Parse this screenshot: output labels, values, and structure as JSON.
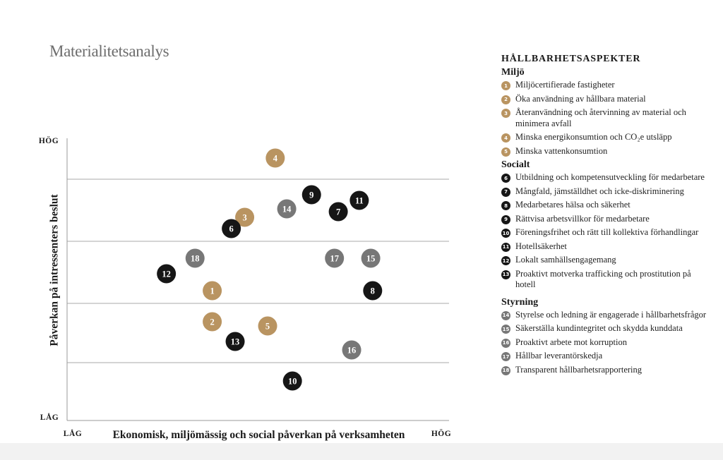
{
  "page": {
    "title": "Materialitetsanalys"
  },
  "colors": {
    "Miljö": "#b99461",
    "Socialt": "#161616",
    "Styrning": "#777777"
  },
  "legend": {
    "heading": "HÅLLBARHETSASPEKTER",
    "groups": [
      {
        "title": "Miljö",
        "items": [
          {
            "num": "1",
            "text": "Miljöcertifierade fastigheter"
          },
          {
            "num": "2",
            "text": "Öka användning av hållbara material"
          },
          {
            "num": "3",
            "text": "Återanvändning och återvinning av material och minimera avfall"
          },
          {
            "num": "4",
            "text": "Minska energikonsumtion och CO₂e utsläpp"
          },
          {
            "num": "5",
            "text": "Minska vattenkonsumtion"
          }
        ]
      },
      {
        "title": "Socialt",
        "items": [
          {
            "num": "6",
            "text": "Utbildning och kompetensutveckling för medarbetare"
          },
          {
            "num": "7",
            "text": "Mångfald, jämställdhet och icke-diskriminering"
          },
          {
            "num": "8",
            "text": "Medarbetares hälsa och säkerhet"
          },
          {
            "num": "9",
            "text": "Rättvisa arbetsvillkor för medarbetare"
          },
          {
            "num": "10",
            "text": "Föreningsfrihet och rätt till kollektiva förhandlingar"
          },
          {
            "num": "11",
            "text": "Hotellsäkerhet"
          },
          {
            "num": "12",
            "text": "Lokalt samhällsengagemang"
          },
          {
            "num": "13",
            "text": "Proaktivt motverka trafficking och prostitution på hotell"
          }
        ]
      },
      {
        "title": "Styrning",
        "items": [
          {
            "num": "14",
            "text": "Styrelse och ledning är engagerade i hållbarhetsfrågor"
          },
          {
            "num": "15",
            "text": "Säkerställa kundintegritet och skydda kunddata"
          },
          {
            "num": "16",
            "text": "Proaktivt arbete mot korruption"
          },
          {
            "num": "17",
            "text": "Hållbar leverantörskedja"
          },
          {
            "num": "18",
            "text": "Transparent hållbarhetsrapportering"
          }
        ]
      }
    ]
  },
  "chart_data": {
    "type": "scatter",
    "xlabel": "Ekonomisk, miljömässig och social påverkan på verksamheten",
    "ylabel": "Påverkan på intressenters beslut",
    "x_low_label": "LÅG",
    "x_high_label": "HÖG",
    "y_low_label": "LÅG",
    "y_high_label": "HÖG",
    "xlim": [
      0,
      100
    ],
    "ylim": [
      0,
      100
    ],
    "grid": "horizontal",
    "gridlines_y": [
      20.5,
      41.5,
      63.5,
      85.5
    ],
    "points": [
      {
        "label": "1",
        "group": "Miljö",
        "x": 38,
        "y": 46
      },
      {
        "label": "2",
        "group": "Miljö",
        "x": 38,
        "y": 35
      },
      {
        "label": "3",
        "group": "Miljö",
        "x": 46.5,
        "y": 72
      },
      {
        "label": "4",
        "group": "Miljö",
        "x": 54.5,
        "y": 93
      },
      {
        "label": "5",
        "group": "Miljö",
        "x": 52.5,
        "y": 33.5
      },
      {
        "label": "6",
        "group": "Socialt",
        "x": 43,
        "y": 68
      },
      {
        "label": "7",
        "group": "Socialt",
        "x": 71,
        "y": 74
      },
      {
        "label": "8",
        "group": "Socialt",
        "x": 80,
        "y": 46
      },
      {
        "label": "9",
        "group": "Socialt",
        "x": 64,
        "y": 80
      },
      {
        "label": "10",
        "group": "Socialt",
        "x": 59,
        "y": 14
      },
      {
        "label": "11",
        "group": "Socialt",
        "x": 76.5,
        "y": 78
      },
      {
        "label": "12",
        "group": "Socialt",
        "x": 26,
        "y": 52
      },
      {
        "label": "13",
        "group": "Socialt",
        "x": 44,
        "y": 28
      },
      {
        "label": "14",
        "group": "Styrning",
        "x": 57.5,
        "y": 75
      },
      {
        "label": "15",
        "group": "Styrning",
        "x": 79.5,
        "y": 57.5
      },
      {
        "label": "16",
        "group": "Styrning",
        "x": 74.5,
        "y": 25
      },
      {
        "label": "17",
        "group": "Styrning",
        "x": 70,
        "y": 57.5
      },
      {
        "label": "18",
        "group": "Styrning",
        "x": 33.5,
        "y": 57.5
      }
    ]
  }
}
